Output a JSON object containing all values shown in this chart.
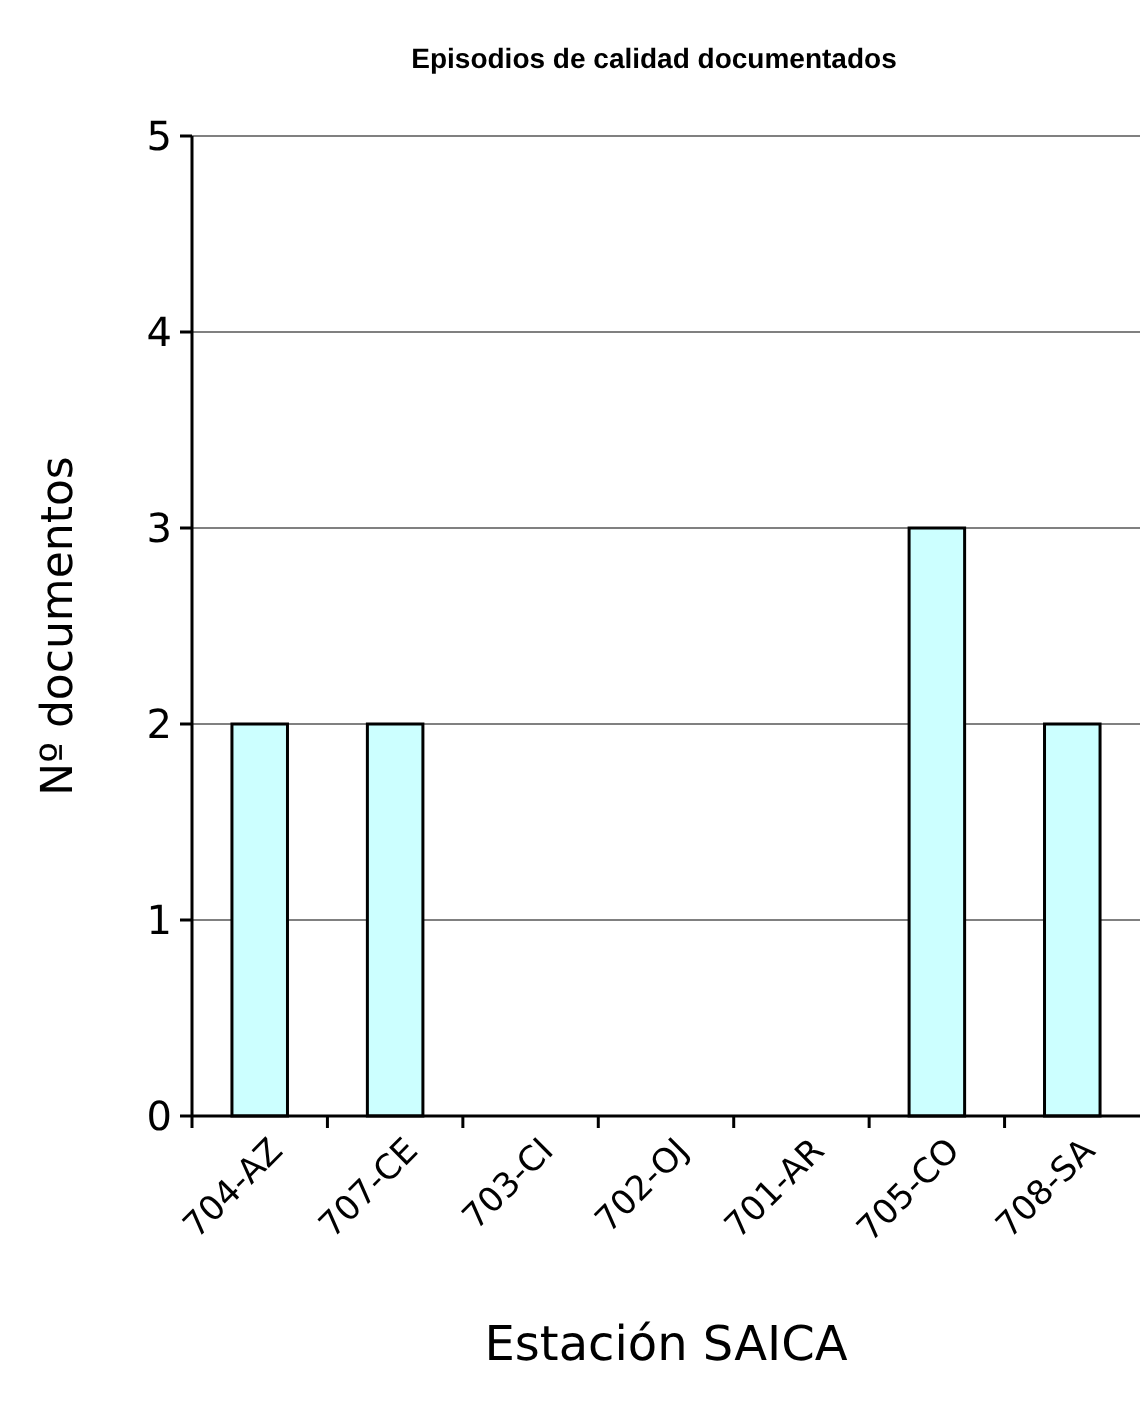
{
  "chart_data": {
    "type": "bar",
    "title": "Episodios de calidad documentados",
    "xlabel": "Estación SAICA",
    "ylabel": "Nº documentos",
    "categories": [
      "704-AZ",
      "707-CE",
      "703-CI",
      "702-OJ",
      "701-AR",
      "705-CO",
      "708-SA"
    ],
    "values": [
      2,
      2,
      0,
      0,
      0,
      3,
      2
    ],
    "color": "#ccffff",
    "ylim": [
      0,
      5
    ],
    "yticks": [
      0,
      1,
      2,
      3,
      4,
      5
    ],
    "grid": "y"
  }
}
